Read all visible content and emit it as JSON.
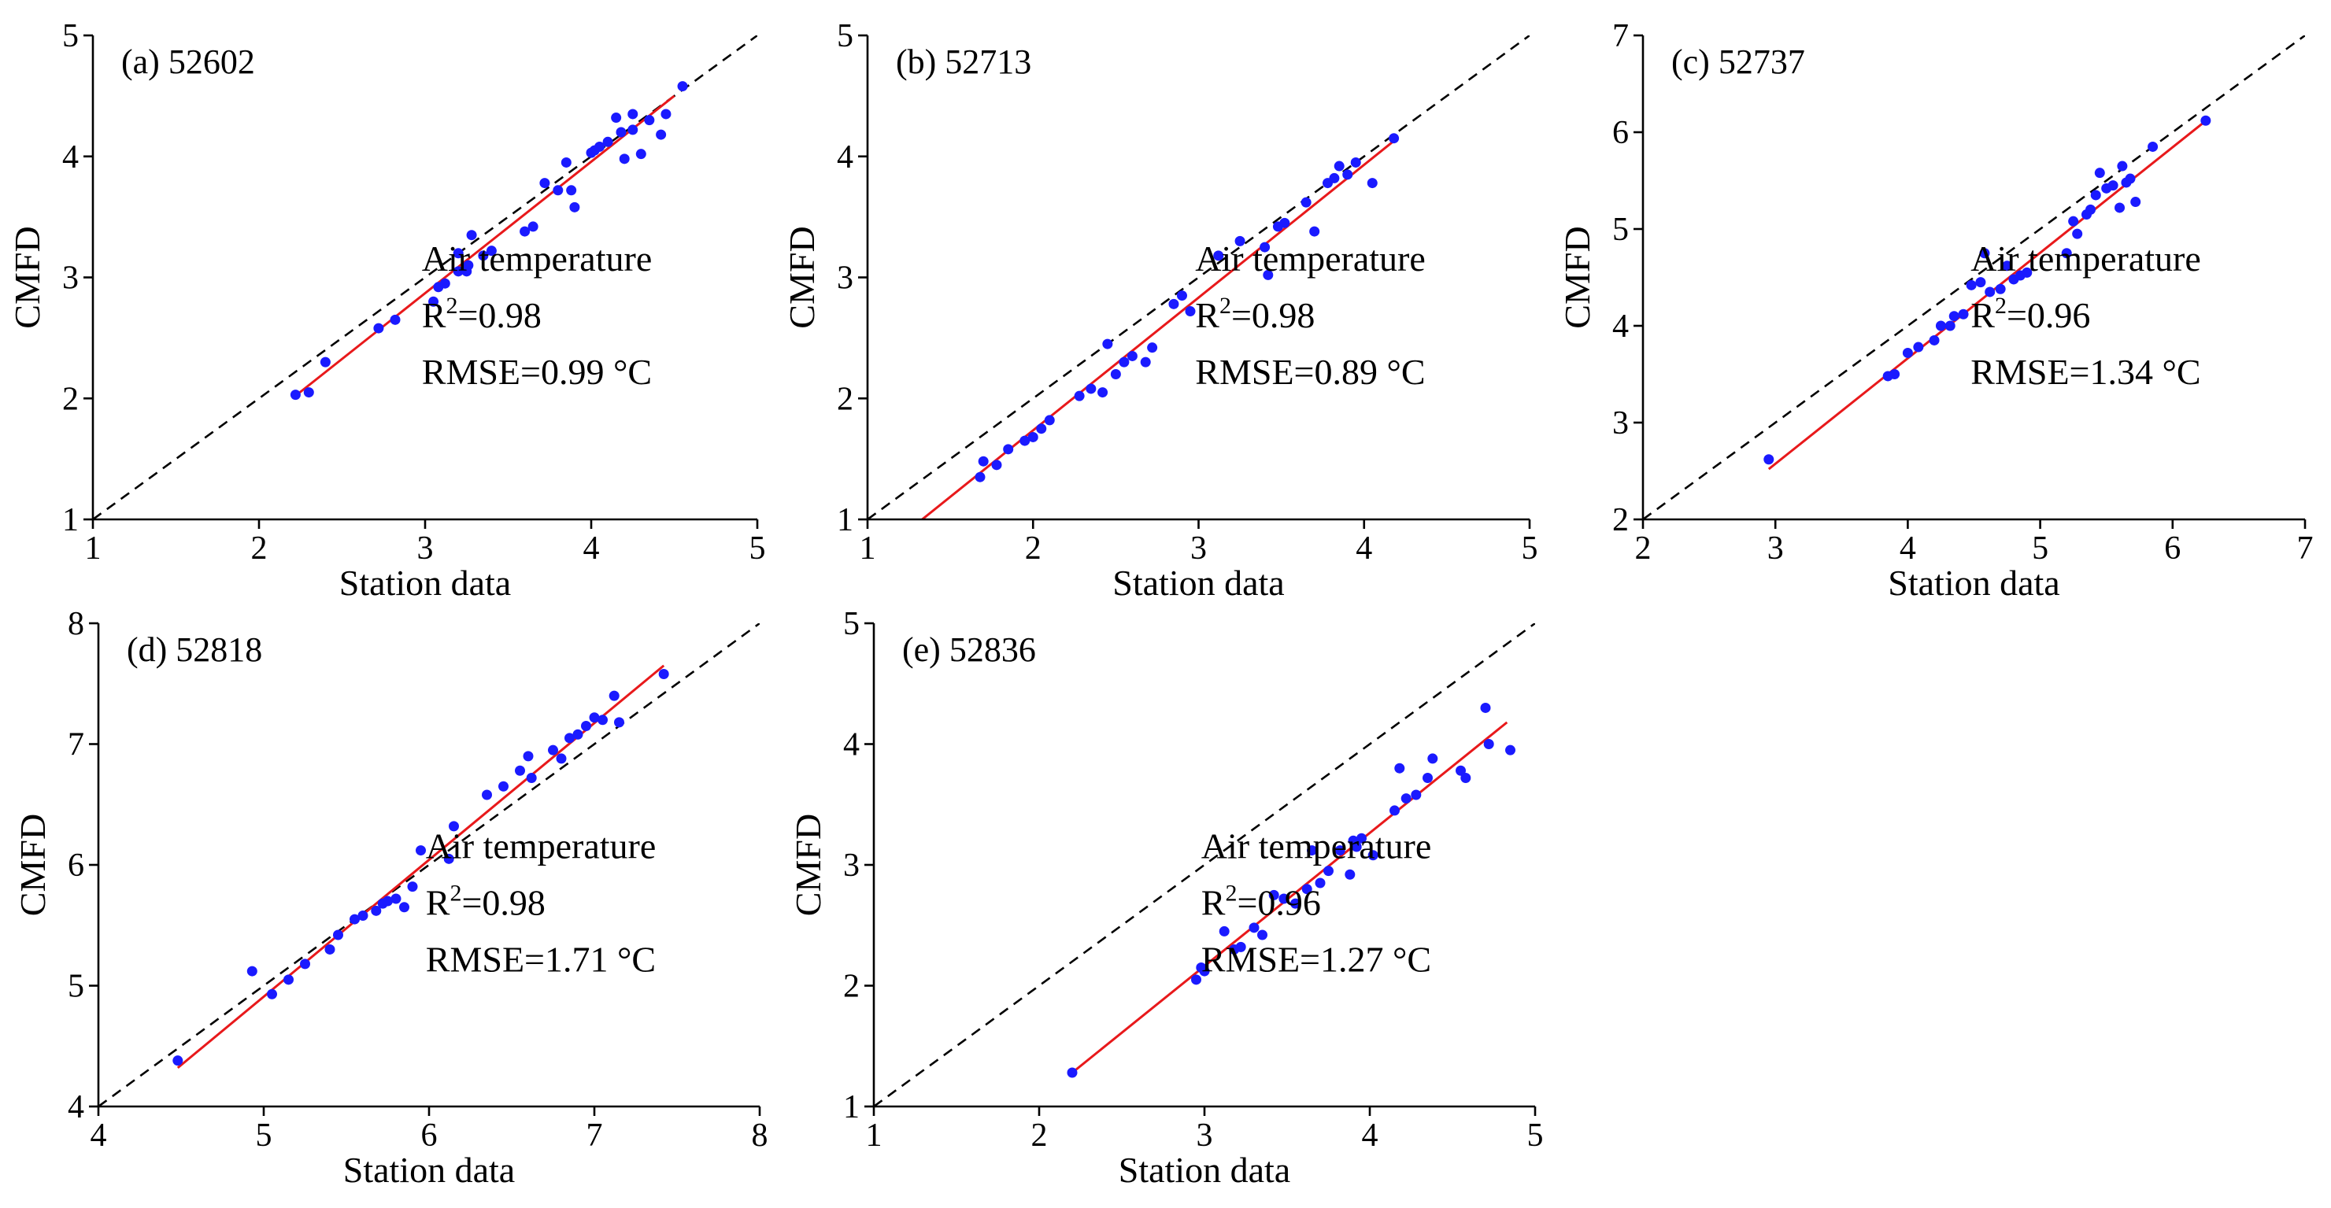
{
  "chart_data": [
    {
      "type": "scatter",
      "panel_label": "(a) 52602",
      "xlabel": "Station data",
      "ylabel": "CMFD",
      "xlim": [
        1,
        5
      ],
      "ylim": [
        1,
        5
      ],
      "xticks": [
        "1",
        "2",
        "3",
        "4",
        "5"
      ],
      "yticks": [
        "1",
        "2",
        "3",
        "4",
        "5"
      ],
      "annotation": {
        "variable": "Air temperature",
        "r2_prefix": "R",
        "r2_sup": "2",
        "r2_value": "=0.98",
        "rmse": "RMSE=0.99 °C"
      },
      "fit_line": {
        "x": [
          2.2,
          4.5
        ],
        "y": [
          2.0,
          4.5
        ]
      },
      "points": {
        "x": [
          2.22,
          2.4,
          2.3,
          2.72,
          2.82,
          3.05,
          3.08,
          3.12,
          3.2,
          3.2,
          3.25,
          3.26,
          3.28,
          3.35,
          3.4,
          3.6,
          3.65,
          3.72,
          3.8,
          3.85,
          3.88,
          3.9,
          4.0,
          4.02,
          4.05,
          4.1,
          4.15,
          4.18,
          4.2,
          4.25,
          4.25,
          4.3,
          4.35,
          4.42,
          4.45,
          4.55
        ],
        "y": [
          2.03,
          2.3,
          2.05,
          2.58,
          2.65,
          2.8,
          2.92,
          2.95,
          3.05,
          3.2,
          3.05,
          3.1,
          3.35,
          3.18,
          3.22,
          3.38,
          3.42,
          3.78,
          3.72,
          3.95,
          3.72,
          3.58,
          4.03,
          4.05,
          4.08,
          4.12,
          4.32,
          4.2,
          3.98,
          4.35,
          4.22,
          4.02,
          4.3,
          4.18,
          4.35,
          4.58
        ]
      }
    },
    {
      "type": "scatter",
      "panel_label": "(b) 52713",
      "xlabel": "Station data",
      "ylabel": "CMFD",
      "xlim": [
        1,
        5
      ],
      "ylim": [
        1,
        5
      ],
      "xticks": [
        "1",
        "2",
        "3",
        "4",
        "5"
      ],
      "yticks": [
        "1",
        "2",
        "3",
        "4",
        "5"
      ],
      "annotation": {
        "variable": "Air temperature",
        "r2_prefix": "R",
        "r2_sup": "2",
        "r2_value": "=0.98",
        "rmse": "RMSE=0.89 °C"
      },
      "fit_line": {
        "x": [
          1.33,
          4.2
        ],
        "y": [
          1.0,
          4.15
        ]
      },
      "points": {
        "x": [
          1.68,
          1.7,
          1.78,
          1.85,
          1.95,
          2.0,
          2.05,
          2.1,
          2.28,
          2.35,
          2.42,
          2.45,
          2.5,
          2.55,
          2.6,
          2.68,
          2.72,
          2.85,
          2.9,
          2.95,
          3.12,
          3.25,
          3.4,
          3.42,
          3.48,
          3.52,
          3.65,
          3.7,
          3.78,
          3.82,
          3.85,
          3.9,
          3.95,
          4.05,
          4.18
        ],
        "y": [
          1.35,
          1.48,
          1.45,
          1.58,
          1.65,
          1.68,
          1.75,
          1.82,
          2.02,
          2.08,
          2.05,
          2.45,
          2.2,
          2.3,
          2.35,
          2.3,
          2.42,
          2.78,
          2.85,
          2.72,
          3.18,
          3.3,
          3.25,
          3.02,
          3.42,
          3.45,
          3.62,
          3.38,
          3.78,
          3.82,
          3.92,
          3.85,
          3.95,
          3.78,
          4.15
        ]
      }
    },
    {
      "type": "scatter",
      "panel_label": "(c) 52737",
      "xlabel": "Station data",
      "ylabel": "CMFD",
      "xlim": [
        2,
        7
      ],
      "ylim": [
        2,
        7
      ],
      "xticks": [
        "2",
        "3",
        "4",
        "5",
        "6",
        "7"
      ],
      "yticks": [
        "2",
        "3",
        "4",
        "5",
        "6",
        "7"
      ],
      "annotation": {
        "variable": "Air temperature",
        "r2_prefix": "R",
        "r2_sup": "2",
        "r2_value": "=0.96",
        "rmse": "RMSE=1.34 °C"
      },
      "fit_line": {
        "x": [
          2.95,
          6.28
        ],
        "y": [
          2.52,
          6.15
        ]
      },
      "points": {
        "x": [
          2.95,
          3.85,
          3.9,
          4.0,
          4.08,
          4.2,
          4.25,
          4.32,
          4.35,
          4.42,
          4.48,
          4.55,
          4.58,
          4.62,
          4.7,
          4.75,
          4.8,
          4.85,
          4.9,
          5.2,
          5.25,
          5.28,
          5.35,
          5.38,
          5.42,
          5.45,
          5.5,
          5.55,
          5.6,
          5.62,
          5.65,
          5.68,
          5.72,
          5.85,
          6.25
        ],
        "y": [
          2.62,
          3.48,
          3.5,
          3.72,
          3.78,
          3.85,
          4.0,
          4.0,
          4.1,
          4.12,
          4.42,
          4.45,
          4.75,
          4.35,
          4.38,
          4.62,
          4.48,
          4.52,
          4.55,
          4.75,
          5.08,
          4.95,
          5.15,
          5.2,
          5.35,
          5.58,
          5.42,
          5.45,
          5.22,
          5.65,
          5.48,
          5.52,
          5.28,
          5.85,
          6.12
        ]
      }
    },
    {
      "type": "scatter",
      "panel_label": "(d) 52818",
      "xlabel": "Station data",
      "ylabel": "CMFD",
      "xlim": [
        4,
        8
      ],
      "ylim": [
        4,
        8
      ],
      "xticks": [
        "4",
        "5",
        "6",
        "7",
        "8"
      ],
      "yticks": [
        "4",
        "5",
        "6",
        "7",
        "8"
      ],
      "annotation": {
        "variable": "Air temperature",
        "r2_prefix": "R",
        "r2_sup": "2",
        "r2_value": "=0.98",
        "rmse": "RMSE=1.71 °C"
      },
      "fit_line": {
        "x": [
          4.48,
          7.42
        ],
        "y": [
          4.32,
          7.65
        ]
      },
      "points": {
        "x": [
          4.48,
          4.93,
          5.05,
          5.15,
          5.25,
          5.4,
          5.45,
          5.55,
          5.6,
          5.68,
          5.72,
          5.75,
          5.8,
          5.85,
          5.9,
          5.95,
          6.12,
          6.15,
          6.35,
          6.45,
          6.55,
          6.6,
          6.62,
          6.75,
          6.8,
          6.85,
          6.9,
          6.95,
          7.0,
          7.05,
          7.12,
          7.15,
          7.42
        ],
        "y": [
          4.38,
          5.12,
          4.93,
          5.05,
          5.18,
          5.3,
          5.42,
          5.55,
          5.58,
          5.62,
          5.68,
          5.7,
          5.72,
          5.65,
          5.82,
          6.12,
          6.05,
          6.32,
          6.58,
          6.65,
          6.78,
          6.9,
          6.72,
          6.95,
          6.88,
          7.05,
          7.08,
          7.15,
          7.22,
          7.2,
          7.4,
          7.18,
          7.58
        ]
      }
    },
    {
      "type": "scatter",
      "panel_label": "(e) 52836",
      "xlabel": "Station data",
      "ylabel": "CMFD",
      "xlim": [
        1,
        5
      ],
      "ylim": [
        1,
        5
      ],
      "xticks": [
        "1",
        "2",
        "3",
        "4",
        "5"
      ],
      "yticks": [
        "1",
        "2",
        "3",
        "4",
        "5"
      ],
      "annotation": {
        "variable": "Air temperature",
        "r2_prefix": "R",
        "r2_sup": "2",
        "r2_value": "=0.96",
        "rmse": "RMSE=1.27 °C"
      },
      "fit_line": {
        "x": [
          2.2,
          4.83
        ],
        "y": [
          1.28,
          4.18
        ]
      },
      "points": {
        "x": [
          2.2,
          2.95,
          2.98,
          3.0,
          3.12,
          3.18,
          3.22,
          3.3,
          3.35,
          3.42,
          3.48,
          3.55,
          3.62,
          3.65,
          3.7,
          3.75,
          3.82,
          3.88,
          3.9,
          3.92,
          3.95,
          4.02,
          4.15,
          4.18,
          4.22,
          4.28,
          4.35,
          4.38,
          4.55,
          4.58,
          4.7,
          4.72,
          4.85
        ],
        "y": [
          1.28,
          2.05,
          2.15,
          2.12,
          2.45,
          2.3,
          2.32,
          2.48,
          2.42,
          2.75,
          2.72,
          2.68,
          2.8,
          3.12,
          2.85,
          2.95,
          3.12,
          2.92,
          3.2,
          3.15,
          3.22,
          3.08,
          3.45,
          3.8,
          3.55,
          3.58,
          3.72,
          3.88,
          3.78,
          3.72,
          4.3,
          4.0,
          3.95
        ]
      }
    }
  ],
  "style": {
    "point_color": "#1a1aff",
    "fit_color": "#e8191b",
    "identity_color": "#000000",
    "axis_color": "#000000"
  }
}
